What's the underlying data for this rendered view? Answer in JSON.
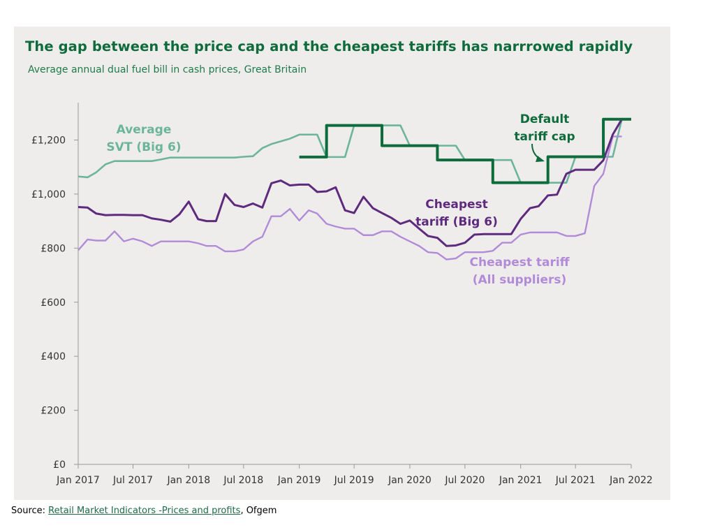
{
  "title": "The gap between the price cap and the cheapest tariffs has narrrowed rapidly",
  "subtitle": "Average annual dual fuel bill in cash prices, Great Britain",
  "source": {
    "prefix": "Source: ",
    "link_text": "Retail Market Indicators -Prices and profits",
    "suffix": ", Ofgem"
  },
  "colors": {
    "svt": "#6cb59a",
    "cap": "#0e6b3c",
    "big6": "#5e2a7e",
    "all": "#b18bd8",
    "axis": "#999999"
  },
  "chart_data": {
    "type": "line",
    "xlabel": "",
    "ylabel": "",
    "ylim": [
      0,
      1400
    ],
    "y_ticks": [
      0,
      200,
      400,
      600,
      800,
      1000,
      1200
    ],
    "y_tick_labels": [
      "£0",
      "£200",
      "£400",
      "£600",
      "£800",
      "£1,000",
      "£1,200"
    ],
    "x_ticks": [
      "2017-01",
      "2017-07",
      "2018-01",
      "2018-07",
      "2019-01",
      "2019-07",
      "2020-01",
      "2020-07",
      "2021-01",
      "2021-07",
      "2022-01"
    ],
    "x_tick_labels": [
      "Jan 2017",
      "Jul 2017",
      "Jan 2018",
      "Jul 2018",
      "Jan 2019",
      "Jul 2019",
      "Jan 2020",
      "Jul 2020",
      "Jan 2021",
      "Jul 2021",
      "Jan 2022"
    ],
    "grid": false,
    "series": [
      {
        "key": "svt",
        "name": "Average SVT (Big 6)",
        "label_lines": [
          "Average",
          "SVT (Big 6)"
        ],
        "step": false,
        "x": [
          "2017-01",
          "2017-02",
          "2017-03",
          "2017-04",
          "2017-05",
          "2017-06",
          "2017-07",
          "2017-08",
          "2017-09",
          "2017-10",
          "2017-11",
          "2017-12",
          "2018-01",
          "2018-02",
          "2018-03",
          "2018-04",
          "2018-05",
          "2018-06",
          "2018-07",
          "2018-08",
          "2018-09",
          "2018-10",
          "2018-11",
          "2018-12",
          "2019-01",
          "2019-02",
          "2019-03",
          "2019-04",
          "2019-05",
          "2019-06",
          "2019-07",
          "2019-08",
          "2019-09",
          "2019-10",
          "2019-11",
          "2019-12",
          "2020-01",
          "2020-02",
          "2020-03",
          "2020-04",
          "2020-05",
          "2020-06",
          "2020-07",
          "2020-08",
          "2020-09",
          "2020-10",
          "2020-11",
          "2020-12",
          "2021-01",
          "2021-02",
          "2021-03",
          "2021-04",
          "2021-05",
          "2021-06",
          "2021-07",
          "2021-08",
          "2021-09",
          "2021-10",
          "2021-11",
          "2021-12"
        ],
        "y": [
          1065,
          1062,
          1080,
          1110,
          1122,
          1122,
          1122,
          1122,
          1122,
          1128,
          1135,
          1135,
          1135,
          1135,
          1135,
          1135,
          1135,
          1135,
          1138,
          1140,
          1170,
          1185,
          1195,
          1205,
          1220,
          1220,
          1220,
          1137,
          1137,
          1137,
          1254,
          1254,
          1254,
          1254,
          1254,
          1254,
          1179,
          1179,
          1179,
          1179,
          1179,
          1179,
          1126,
          1126,
          1126,
          1126,
          1126,
          1126,
          1042,
          1042,
          1042,
          1042,
          1042,
          1042,
          1138,
          1138,
          1138,
          1138,
          1138,
          1277
        ]
      },
      {
        "key": "cap",
        "name": "Default tariff cap",
        "label_lines": [
          "Default",
          "tariff cap"
        ],
        "step": true,
        "x": [
          "2019-01",
          "2019-04",
          "2019-10",
          "2020-04",
          "2020-10",
          "2021-04",
          "2021-10",
          "2022-01"
        ],
        "y": [
          1137,
          1254,
          1179,
          1126,
          1042,
          1138,
          1277,
          1277
        ]
      },
      {
        "key": "big6",
        "name": "Cheapest tariff (Big 6)",
        "label_lines": [
          "Cheapest",
          "tariff (Big 6)"
        ],
        "step": false,
        "x": [
          "2017-01",
          "2017-02",
          "2017-03",
          "2017-04",
          "2017-05",
          "2017-06",
          "2017-07",
          "2017-08",
          "2017-09",
          "2017-10",
          "2017-11",
          "2017-12",
          "2018-01",
          "2018-02",
          "2018-03",
          "2018-04",
          "2018-05",
          "2018-06",
          "2018-07",
          "2018-08",
          "2018-09",
          "2018-10",
          "2018-11",
          "2018-12",
          "2019-01",
          "2019-02",
          "2019-03",
          "2019-04",
          "2019-05",
          "2019-06",
          "2019-07",
          "2019-08",
          "2019-09",
          "2019-10",
          "2019-11",
          "2019-12",
          "2020-01",
          "2020-02",
          "2020-03",
          "2020-04",
          "2020-05",
          "2020-06",
          "2020-07",
          "2020-08",
          "2020-09",
          "2020-10",
          "2020-11",
          "2020-12",
          "2021-01",
          "2021-02",
          "2021-03",
          "2021-04",
          "2021-05",
          "2021-06",
          "2021-07",
          "2021-08",
          "2021-09",
          "2021-10",
          "2021-11",
          "2021-12"
        ],
        "y": [
          952,
          950,
          928,
          922,
          923,
          923,
          922,
          922,
          910,
          905,
          898,
          925,
          972,
          907,
          900,
          900,
          1000,
          960,
          952,
          965,
          950,
          1040,
          1050,
          1032,
          1035,
          1035,
          1008,
          1010,
          1025,
          940,
          930,
          990,
          948,
          930,
          912,
          890,
          902,
          872,
          845,
          838,
          808,
          810,
          820,
          850,
          852,
          852,
          852,
          852,
          908,
          948,
          955,
          995,
          998,
          1075,
          1090,
          1090,
          1090,
          1125,
          1220,
          1277
        ]
      },
      {
        "key": "all",
        "name": "Cheapest tariff (All suppliers)",
        "label_lines": [
          "Cheapest tariff",
          "(All suppliers)"
        ],
        "step": false,
        "x": [
          "2017-01",
          "2017-02",
          "2017-03",
          "2017-04",
          "2017-05",
          "2017-06",
          "2017-07",
          "2017-08",
          "2017-09",
          "2017-10",
          "2017-11",
          "2017-12",
          "2018-01",
          "2018-02",
          "2018-03",
          "2018-04",
          "2018-05",
          "2018-06",
          "2018-07",
          "2018-08",
          "2018-09",
          "2018-10",
          "2018-11",
          "2018-12",
          "2019-01",
          "2019-02",
          "2019-03",
          "2019-04",
          "2019-05",
          "2019-06",
          "2019-07",
          "2019-08",
          "2019-09",
          "2019-10",
          "2019-11",
          "2019-12",
          "2020-01",
          "2020-02",
          "2020-03",
          "2020-04",
          "2020-05",
          "2020-06",
          "2020-07",
          "2020-08",
          "2020-09",
          "2020-10",
          "2020-11",
          "2020-12",
          "2021-01",
          "2021-02",
          "2021-03",
          "2021-04",
          "2021-05",
          "2021-06",
          "2021-07",
          "2021-08",
          "2021-09",
          "2021-10",
          "2021-11",
          "2021-12"
        ],
        "y": [
          792,
          832,
          828,
          828,
          862,
          825,
          835,
          825,
          808,
          825,
          825,
          825,
          825,
          818,
          808,
          808,
          788,
          788,
          795,
          825,
          842,
          918,
          918,
          945,
          902,
          940,
          928,
          890,
          880,
          872,
          872,
          848,
          848,
          862,
          862,
          842,
          825,
          808,
          785,
          782,
          758,
          762,
          785,
          785,
          785,
          790,
          820,
          820,
          850,
          858,
          858,
          858,
          858,
          845,
          845,
          855,
          1030,
          1075,
          1213,
          1213
        ]
      }
    ],
    "annotations": [
      {
        "key": "svt",
        "text_lines": [
          "Average",
          "SVT (Big 6)"
        ]
      },
      {
        "key": "cap",
        "text_lines": [
          "Default",
          "tariff cap"
        ]
      },
      {
        "key": "big6",
        "text_lines": [
          "Cheapest",
          "tariff (Big 6)"
        ]
      },
      {
        "key": "all",
        "text_lines": [
          "Cheapest tariff",
          "(All suppliers)"
        ]
      }
    ]
  }
}
